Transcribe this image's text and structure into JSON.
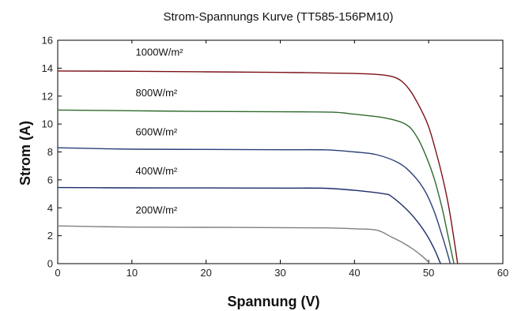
{
  "chart_data": {
    "type": "line",
    "title": "Strom-Spannungs Kurve (TT585-156PM10)",
    "xlabel": "Spannung (V)",
    "ylabel": "Strom (A)",
    "xlim": [
      0,
      60
    ],
    "ylim": [
      0,
      16
    ],
    "xticks": [
      "0",
      "10",
      "20",
      "30",
      "40",
      "50",
      "60"
    ],
    "yticks": [
      "0",
      "2",
      "4",
      "6",
      "8",
      "10",
      "12",
      "14",
      "16"
    ],
    "grid": false,
    "legend": "none",
    "series": [
      {
        "name": "1000W/m²",
        "color": "#7b1116",
        "points": [
          [
            0,
            13.8
          ],
          [
            10,
            13.78
          ],
          [
            20,
            13.74
          ],
          [
            30,
            13.7
          ],
          [
            40,
            13.62
          ],
          [
            44,
            13.5
          ],
          [
            46,
            13.2
          ],
          [
            47.5,
            12.4
          ],
          [
            49,
            11.0
          ],
          [
            50,
            9.8
          ],
          [
            51,
            8.0
          ],
          [
            52,
            5.9
          ],
          [
            52.8,
            3.8
          ],
          [
            53.4,
            1.8
          ],
          [
            53.9,
            0
          ]
        ]
      },
      {
        "name": "800W/m²",
        "color": "#2e6b2e",
        "points": [
          [
            0,
            11.0
          ],
          [
            10,
            10.95
          ],
          [
            20,
            10.9
          ],
          [
            30,
            10.88
          ],
          [
            37,
            10.85
          ],
          [
            40,
            10.7
          ],
          [
            44,
            10.45
          ],
          [
            47,
            9.95
          ],
          [
            48.5,
            9.0
          ],
          [
            49.8,
            7.5
          ],
          [
            50.8,
            6.0
          ],
          [
            51.8,
            4.0
          ],
          [
            52.6,
            2.0
          ],
          [
            53.4,
            0
          ]
        ]
      },
      {
        "name": "600W/m²",
        "color": "#2b3f78",
        "points": [
          [
            0,
            8.3
          ],
          [
            10,
            8.2
          ],
          [
            20,
            8.18
          ],
          [
            30,
            8.16
          ],
          [
            36,
            8.15
          ],
          [
            40,
            8.0
          ],
          [
            43,
            7.8
          ],
          [
            46,
            7.2
          ],
          [
            48,
            6.3
          ],
          [
            49.5,
            5.2
          ],
          [
            50.7,
            3.8
          ],
          [
            51.7,
            2.2
          ],
          [
            52.5,
            0.8
          ],
          [
            52.9,
            0
          ]
        ]
      },
      {
        "name": "400W/m²",
        "color": "#1d2d6b",
        "points": [
          [
            0,
            5.45
          ],
          [
            10,
            5.43
          ],
          [
            20,
            5.42
          ],
          [
            30,
            5.41
          ],
          [
            36,
            5.4
          ],
          [
            40,
            5.25
          ],
          [
            44,
            5.0
          ],
          [
            45,
            4.8
          ],
          [
            47,
            3.9
          ],
          [
            48.5,
            3.0
          ],
          [
            49.8,
            2.0
          ],
          [
            50.8,
            1.0
          ],
          [
            51.6,
            0
          ]
        ]
      },
      {
        "name": "200W/m²",
        "color": "#7f7f7f",
        "points": [
          [
            0,
            2.7
          ],
          [
            10,
            2.62
          ],
          [
            20,
            2.6
          ],
          [
            30,
            2.58
          ],
          [
            36,
            2.56
          ],
          [
            40,
            2.5
          ],
          [
            43,
            2.4
          ],
          [
            45,
            1.9
          ],
          [
            46.5,
            1.5
          ],
          [
            48,
            1.0
          ],
          [
            49.2,
            0.5
          ],
          [
            50.2,
            0
          ]
        ]
      }
    ],
    "annotations": [
      {
        "text": "1000W/m²",
        "x": 10.5,
        "y": 14.9
      },
      {
        "text": "800W/m²",
        "x": 10.5,
        "y": 12.0
      },
      {
        "text": "600W/m²",
        "x": 10.5,
        "y": 9.2
      },
      {
        "text": "400W/m²",
        "x": 10.5,
        "y": 6.4
      },
      {
        "text": "200W/m²",
        "x": 10.5,
        "y": 3.6
      }
    ]
  }
}
